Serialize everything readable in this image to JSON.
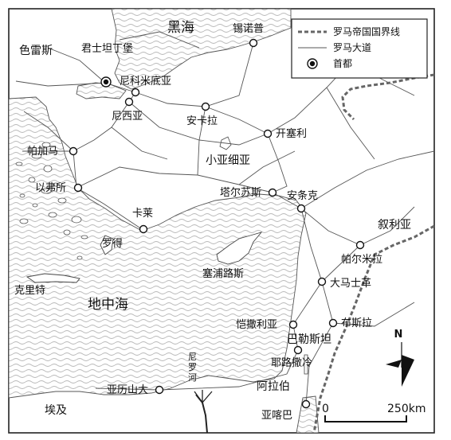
{
  "legend": {
    "boundary": "罗马帝国国界线",
    "road": "罗马大道",
    "capital": "首都"
  },
  "seas": {
    "black_sea": "黑海",
    "mediterranean": "地中海"
  },
  "regions": {
    "thrace": "色雷斯",
    "asia_minor": "小亚细亚",
    "syria": "叙利亚",
    "egypt": "埃及",
    "arabia": "阿拉伯",
    "palestine": "巴勒斯坦"
  },
  "islands": {
    "crete": "克里特",
    "rhodes": "罗得",
    "cyprus": "塞浦路斯"
  },
  "river": {
    "nile": "尼罗河"
  },
  "cities": {
    "constantinople": "君士坦丁堡",
    "nicomedia": "尼科米底亚",
    "nicaea": "尼西亚",
    "ancyra": "安卡拉",
    "sinope": "锡诺普",
    "caesarea": "开塞利",
    "pergamon": "帕加马",
    "ephesus": "以弗所",
    "caria": "卡莱",
    "tarsus": "塔尔苏斯",
    "antioch": "安条克",
    "palmyra": "帕尔米拉",
    "damascus": "大马士革",
    "caesarea_maritima": "恺撒利亚",
    "bostra": "布斯拉",
    "jerusalem": "耶路撒冷",
    "alexandria": "亚历山大",
    "aqaba": "亚喀巴"
  },
  "scale": {
    "zero": "0",
    "distance": "250km"
  },
  "north": "N"
}
